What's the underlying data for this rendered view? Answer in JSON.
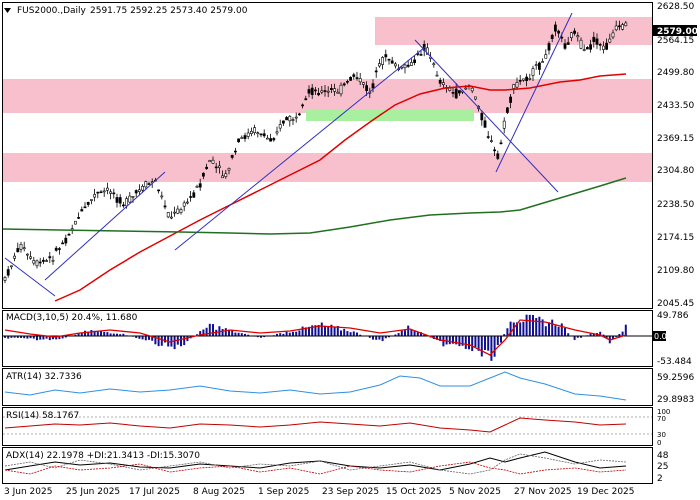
{
  "header": {
    "symbol": "FUS2000.,Daily",
    "ohlc": "2591.75 2592.25 2573.40 2579.00"
  },
  "current_price": "2579.00",
  "main_axis": [
    "2628.50",
    "2564.15",
    "2499.80",
    "2433.50",
    "2369.15",
    "2304.80",
    "2238.50",
    "2174.15",
    "2109.80",
    "2045.45"
  ],
  "x_axis": [
    "3 Jun 2025",
    "25 Jun 2025",
    "17 Jul 2025",
    "8 Aug 2025",
    "1 Sep 2025",
    "23 Sep 2025",
    "15 Oct 2025",
    "5 Nov 2025",
    "27 Nov 2025",
    "19 Dec 2025"
  ],
  "macd": {
    "label": "MACD(3,10,5) 20.4%, 11.680",
    "axis_top": "49.786",
    "axis_zero": "0.00",
    "axis_bottom": "-53.484"
  },
  "atr": {
    "label": "ATR(14) 32.7336",
    "axis_top": "59.2596",
    "axis_bottom": "29.8983"
  },
  "rsi": {
    "label": "RSI(14) 58.1767",
    "axis_top": "100",
    "axis_70": "70",
    "axis_30": "30",
    "axis_bottom": "0"
  },
  "adx": {
    "label": "ADX(14) 22.1978 +DI:21.3413 -DI:15.3070",
    "axis_top": "48",
    "axis_mid": "25",
    "axis_bottom": "2"
  },
  "colors": {
    "resistance_zone": "#f8c0cc",
    "support_zone": "#a8f0a0",
    "ma_fast": "#e00000",
    "ma_slow": "#207020",
    "candles": "#000000",
    "trendline": "#3030c0",
    "macd_bars": "#101090",
    "atr_line": "#3090e0",
    "rsi_line": "#c00000"
  },
  "icons": {
    "menu": "triangle-down-icon"
  }
}
